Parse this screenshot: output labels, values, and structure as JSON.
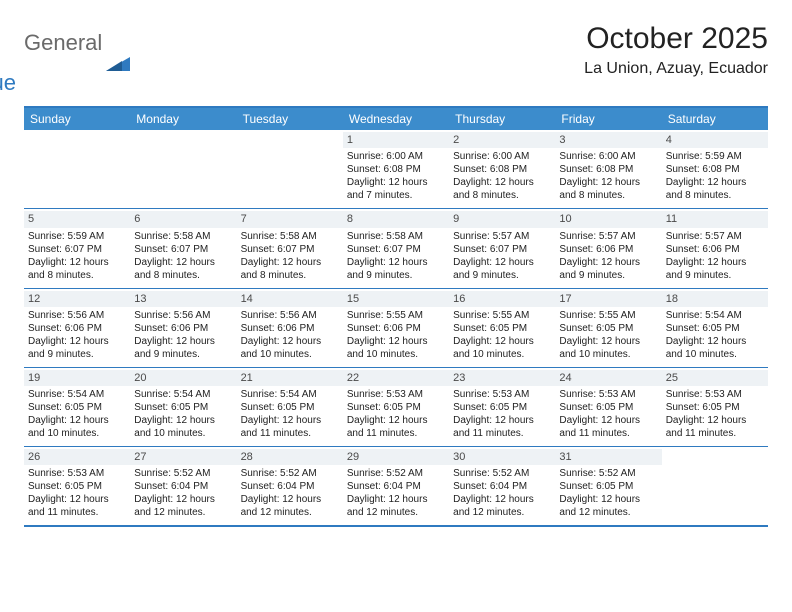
{
  "colors": {
    "header_bg": "#3c8ccc",
    "border": "#2f7ac0",
    "daynum_bg": "#eef2f5",
    "text": "#222222",
    "header_text": "#ffffff",
    "logo_gray": "#6a6a6a",
    "logo_blue": "#2f7ac0",
    "background": "#ffffff"
  },
  "logo": {
    "word1": "General",
    "word2": "Blue"
  },
  "title": "October 2025",
  "location": "La Union, Azuay, Ecuador",
  "day_headers": [
    "Sunday",
    "Monday",
    "Tuesday",
    "Wednesday",
    "Thursday",
    "Friday",
    "Saturday"
  ],
  "layout": {
    "cols": 7,
    "rows": 5,
    "header_fontsize": 12,
    "cell_fontsize": 10,
    "title_fontsize": 30,
    "location_fontsize": 16
  },
  "weeks": [
    [
      {
        "empty": true
      },
      {
        "empty": true
      },
      {
        "empty": true
      },
      {
        "day": "1",
        "sunrise": "Sunrise: 6:00 AM",
        "sunset": "Sunset: 6:08 PM",
        "daylight1": "Daylight: 12 hours",
        "daylight2": "and 7 minutes."
      },
      {
        "day": "2",
        "sunrise": "Sunrise: 6:00 AM",
        "sunset": "Sunset: 6:08 PM",
        "daylight1": "Daylight: 12 hours",
        "daylight2": "and 8 minutes."
      },
      {
        "day": "3",
        "sunrise": "Sunrise: 6:00 AM",
        "sunset": "Sunset: 6:08 PM",
        "daylight1": "Daylight: 12 hours",
        "daylight2": "and 8 minutes."
      },
      {
        "day": "4",
        "sunrise": "Sunrise: 5:59 AM",
        "sunset": "Sunset: 6:08 PM",
        "daylight1": "Daylight: 12 hours",
        "daylight2": "and 8 minutes."
      }
    ],
    [
      {
        "day": "5",
        "sunrise": "Sunrise: 5:59 AM",
        "sunset": "Sunset: 6:07 PM",
        "daylight1": "Daylight: 12 hours",
        "daylight2": "and 8 minutes."
      },
      {
        "day": "6",
        "sunrise": "Sunrise: 5:58 AM",
        "sunset": "Sunset: 6:07 PM",
        "daylight1": "Daylight: 12 hours",
        "daylight2": "and 8 minutes."
      },
      {
        "day": "7",
        "sunrise": "Sunrise: 5:58 AM",
        "sunset": "Sunset: 6:07 PM",
        "daylight1": "Daylight: 12 hours",
        "daylight2": "and 8 minutes."
      },
      {
        "day": "8",
        "sunrise": "Sunrise: 5:58 AM",
        "sunset": "Sunset: 6:07 PM",
        "daylight1": "Daylight: 12 hours",
        "daylight2": "and 9 minutes."
      },
      {
        "day": "9",
        "sunrise": "Sunrise: 5:57 AM",
        "sunset": "Sunset: 6:07 PM",
        "daylight1": "Daylight: 12 hours",
        "daylight2": "and 9 minutes."
      },
      {
        "day": "10",
        "sunrise": "Sunrise: 5:57 AM",
        "sunset": "Sunset: 6:06 PM",
        "daylight1": "Daylight: 12 hours",
        "daylight2": "and 9 minutes."
      },
      {
        "day": "11",
        "sunrise": "Sunrise: 5:57 AM",
        "sunset": "Sunset: 6:06 PM",
        "daylight1": "Daylight: 12 hours",
        "daylight2": "and 9 minutes."
      }
    ],
    [
      {
        "day": "12",
        "sunrise": "Sunrise: 5:56 AM",
        "sunset": "Sunset: 6:06 PM",
        "daylight1": "Daylight: 12 hours",
        "daylight2": "and 9 minutes."
      },
      {
        "day": "13",
        "sunrise": "Sunrise: 5:56 AM",
        "sunset": "Sunset: 6:06 PM",
        "daylight1": "Daylight: 12 hours",
        "daylight2": "and 9 minutes."
      },
      {
        "day": "14",
        "sunrise": "Sunrise: 5:56 AM",
        "sunset": "Sunset: 6:06 PM",
        "daylight1": "Daylight: 12 hours",
        "daylight2": "and 10 minutes."
      },
      {
        "day": "15",
        "sunrise": "Sunrise: 5:55 AM",
        "sunset": "Sunset: 6:06 PM",
        "daylight1": "Daylight: 12 hours",
        "daylight2": "and 10 minutes."
      },
      {
        "day": "16",
        "sunrise": "Sunrise: 5:55 AM",
        "sunset": "Sunset: 6:05 PM",
        "daylight1": "Daylight: 12 hours",
        "daylight2": "and 10 minutes."
      },
      {
        "day": "17",
        "sunrise": "Sunrise: 5:55 AM",
        "sunset": "Sunset: 6:05 PM",
        "daylight1": "Daylight: 12 hours",
        "daylight2": "and 10 minutes."
      },
      {
        "day": "18",
        "sunrise": "Sunrise: 5:54 AM",
        "sunset": "Sunset: 6:05 PM",
        "daylight1": "Daylight: 12 hours",
        "daylight2": "and 10 minutes."
      }
    ],
    [
      {
        "day": "19",
        "sunrise": "Sunrise: 5:54 AM",
        "sunset": "Sunset: 6:05 PM",
        "daylight1": "Daylight: 12 hours",
        "daylight2": "and 10 minutes."
      },
      {
        "day": "20",
        "sunrise": "Sunrise: 5:54 AM",
        "sunset": "Sunset: 6:05 PM",
        "daylight1": "Daylight: 12 hours",
        "daylight2": "and 10 minutes."
      },
      {
        "day": "21",
        "sunrise": "Sunrise: 5:54 AM",
        "sunset": "Sunset: 6:05 PM",
        "daylight1": "Daylight: 12 hours",
        "daylight2": "and 11 minutes."
      },
      {
        "day": "22",
        "sunrise": "Sunrise: 5:53 AM",
        "sunset": "Sunset: 6:05 PM",
        "daylight1": "Daylight: 12 hours",
        "daylight2": "and 11 minutes."
      },
      {
        "day": "23",
        "sunrise": "Sunrise: 5:53 AM",
        "sunset": "Sunset: 6:05 PM",
        "daylight1": "Daylight: 12 hours",
        "daylight2": "and 11 minutes."
      },
      {
        "day": "24",
        "sunrise": "Sunrise: 5:53 AM",
        "sunset": "Sunset: 6:05 PM",
        "daylight1": "Daylight: 12 hours",
        "daylight2": "and 11 minutes."
      },
      {
        "day": "25",
        "sunrise": "Sunrise: 5:53 AM",
        "sunset": "Sunset: 6:05 PM",
        "daylight1": "Daylight: 12 hours",
        "daylight2": "and 11 minutes."
      }
    ],
    [
      {
        "day": "26",
        "sunrise": "Sunrise: 5:53 AM",
        "sunset": "Sunset: 6:05 PM",
        "daylight1": "Daylight: 12 hours",
        "daylight2": "and 11 minutes."
      },
      {
        "day": "27",
        "sunrise": "Sunrise: 5:52 AM",
        "sunset": "Sunset: 6:04 PM",
        "daylight1": "Daylight: 12 hours",
        "daylight2": "and 12 minutes."
      },
      {
        "day": "28",
        "sunrise": "Sunrise: 5:52 AM",
        "sunset": "Sunset: 6:04 PM",
        "daylight1": "Daylight: 12 hours",
        "daylight2": "and 12 minutes."
      },
      {
        "day": "29",
        "sunrise": "Sunrise: 5:52 AM",
        "sunset": "Sunset: 6:04 PM",
        "daylight1": "Daylight: 12 hours",
        "daylight2": "and 12 minutes."
      },
      {
        "day": "30",
        "sunrise": "Sunrise: 5:52 AM",
        "sunset": "Sunset: 6:04 PM",
        "daylight1": "Daylight: 12 hours",
        "daylight2": "and 12 minutes."
      },
      {
        "day": "31",
        "sunrise": "Sunrise: 5:52 AM",
        "sunset": "Sunset: 6:05 PM",
        "daylight1": "Daylight: 12 hours",
        "daylight2": "and 12 minutes."
      },
      {
        "empty": true
      }
    ]
  ]
}
